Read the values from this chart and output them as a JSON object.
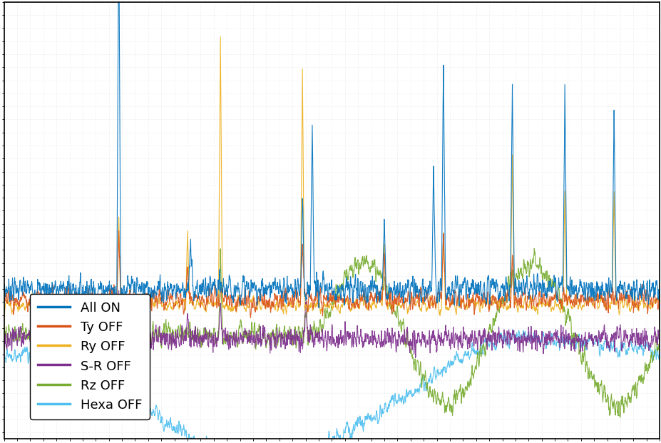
{
  "legend_labels": [
    "All ON",
    "Ty OFF",
    "Ry OFF",
    "S-R OFF",
    "Rz OFF",
    "Hexa OFF"
  ],
  "colors": [
    "#0072BD",
    "#D95319",
    "#EDB120",
    "#7E2F8E",
    "#77AC30",
    "#4DBEEE"
  ],
  "background_color": "#FFFFFF",
  "grid_color": "#CCCCCC",
  "figsize": [
    9.28,
    6.21
  ],
  "dpi": 100,
  "n_points": 3000,
  "seed": 7
}
